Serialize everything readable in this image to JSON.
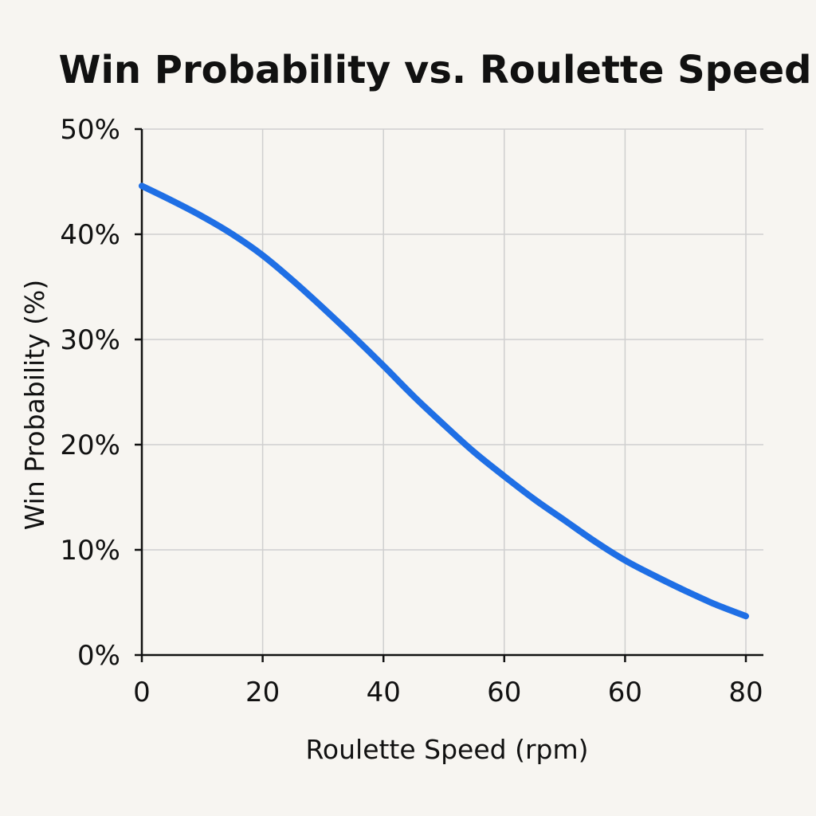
{
  "chart_data": {
    "type": "line",
    "title": "Win Probability vs. Roulette Speed",
    "xlabel": "Roulette Speed (rpm)",
    "ylabel": "Win Probability (%)",
    "x_tick_labels": [
      "0",
      "20",
      "40",
      "60",
      "60",
      "80"
    ],
    "y_tick_labels": [
      "0%",
      "10%",
      "20%",
      "30%",
      "40%",
      "50%"
    ],
    "xlim": [
      0,
      100
    ],
    "ylim": [
      0,
      50
    ],
    "grid": true,
    "series": [
      {
        "color": "#1f6fe5",
        "x": [
          0,
          5,
          10,
          15,
          20,
          25,
          30,
          35,
          40,
          45,
          50,
          55,
          60,
          65,
          70,
          75,
          80,
          85,
          90,
          95,
          100
        ],
        "y": [
          44.6,
          43.2,
          41.7,
          40.0,
          38.0,
          35.6,
          33.0,
          30.3,
          27.5,
          24.6,
          21.9,
          19.3,
          17.0,
          14.8,
          12.8,
          10.8,
          9.0,
          7.5,
          6.1,
          4.8,
          3.7
        ]
      }
    ]
  }
}
